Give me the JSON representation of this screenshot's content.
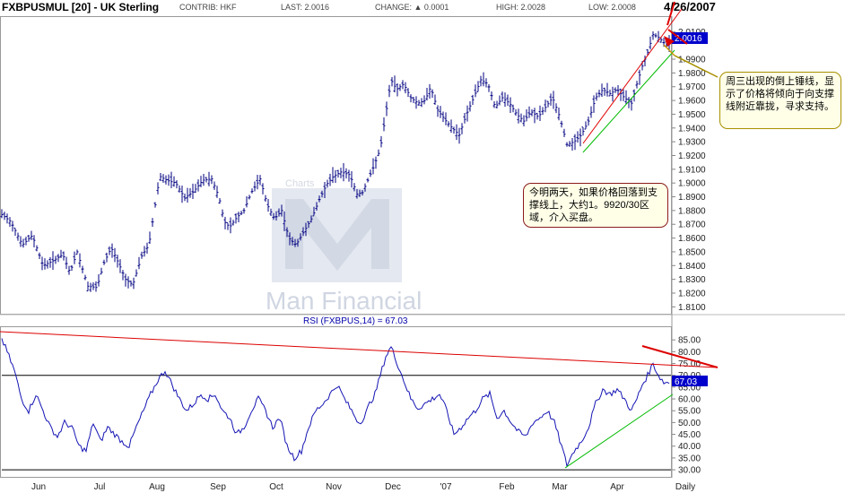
{
  "header": {
    "symbol": "FXBPUSMUL [20] - UK Sterling",
    "contrib": "CONTRIB: HKF",
    "last": "LAST: 2.0016",
    "change": "CHANGE: ▲ 0.0001",
    "high": "HIGH: 2.0028",
    "low": "LOW: 2.0008",
    "date": "4/26/2007"
  },
  "annotations": {
    "note_support": "今明两天，如果价格回落到支撑线上，大约1。9920/30区域，介入买盘。",
    "note_hammer": "周三出现的倒上锤线，显示了价格将倾向于向支撑线附近靠拢，寻求支持。"
  },
  "watermark": {
    "brand": "Man Financial",
    "faded_text": "Charts"
  },
  "colors": {
    "price": "#000080",
    "rsi": "#1414b4",
    "trend_red": "#e00000",
    "trend_green": "#00bb00",
    "label_box": "#0000cc"
  },
  "chart_data": [
    {
      "type": "line",
      "subtype": "ohlc-bar",
      "title": "FXBPUSMUL [20] - UK Sterling",
      "x_labels": [
        "Jun",
        "Jul",
        "Aug",
        "Sep",
        "Oct",
        "Nov",
        "Dec",
        "'07",
        "Feb",
        "Mar",
        "Apr",
        "Daily"
      ],
      "ylim": [
        1.805,
        2.02
      ],
      "yticks": [
        "2.0100",
        "1.9900",
        "1.9800",
        "1.9700",
        "1.9600",
        "1.9500",
        "1.9400",
        "1.9300",
        "1.9200",
        "1.9100",
        "1.9000",
        "1.8900",
        "1.8800",
        "1.8700",
        "1.8600",
        "1.8500",
        "1.8400",
        "1.8300",
        "1.8200",
        "1.8100"
      ],
      "last_label": "2.0016",
      "anchors": [
        [
          0,
          1.878
        ],
        [
          12,
          1.872
        ],
        [
          25,
          1.855
        ],
        [
          36,
          1.862
        ],
        [
          48,
          1.84
        ],
        [
          58,
          1.843
        ],
        [
          70,
          1.848
        ],
        [
          78,
          1.835
        ],
        [
          86,
          1.85
        ],
        [
          98,
          1.825
        ],
        [
          108,
          1.824
        ],
        [
          116,
          1.842
        ],
        [
          124,
          1.853
        ],
        [
          132,
          1.842
        ],
        [
          140,
          1.83
        ],
        [
          148,
          1.826
        ],
        [
          158,
          1.847
        ],
        [
          166,
          1.855
        ],
        [
          172,
          1.88
        ],
        [
          178,
          1.905
        ],
        [
          186,
          1.902
        ],
        [
          196,
          1.9
        ],
        [
          206,
          1.889
        ],
        [
          216,
          1.894
        ],
        [
          226,
          1.902
        ],
        [
          236,
          1.903
        ],
        [
          244,
          1.89
        ],
        [
          250,
          1.872
        ],
        [
          256,
          1.868
        ],
        [
          264,
          1.875
        ],
        [
          272,
          1.88
        ],
        [
          280,
          1.893
        ],
        [
          290,
          1.903
        ],
        [
          298,
          1.884
        ],
        [
          306,
          1.874
        ],
        [
          314,
          1.88
        ],
        [
          322,
          1.86
        ],
        [
          330,
          1.855
        ],
        [
          340,
          1.866
        ],
        [
          348,
          1.875
        ],
        [
          356,
          1.888
        ],
        [
          364,
          1.899
        ],
        [
          372,
          1.905
        ],
        [
          380,
          1.908
        ],
        [
          390,
          1.906
        ],
        [
          398,
          1.892
        ],
        [
          404,
          1.893
        ],
        [
          410,
          1.902
        ],
        [
          416,
          1.911
        ],
        [
          424,
          1.925
        ],
        [
          430,
          1.95
        ],
        [
          436,
          1.975
        ],
        [
          442,
          1.968
        ],
        [
          450,
          1.972
        ],
        [
          458,
          1.962
        ],
        [
          466,
          1.958
        ],
        [
          474,
          1.96
        ],
        [
          480,
          1.97
        ],
        [
          488,
          1.953
        ],
        [
          496,
          1.946
        ],
        [
          504,
          1.94
        ],
        [
          512,
          1.935
        ],
        [
          520,
          1.95
        ],
        [
          528,
          1.962
        ],
        [
          536,
          1.975
        ],
        [
          544,
          1.972
        ],
        [
          552,
          1.955
        ],
        [
          560,
          1.962
        ],
        [
          568,
          1.958
        ],
        [
          576,
          1.95
        ],
        [
          584,
          1.945
        ],
        [
          592,
          1.952
        ],
        [
          600,
          1.948
        ],
        [
          608,
          1.955
        ],
        [
          616,
          1.962
        ],
        [
          624,
          1.948
        ],
        [
          632,
          1.928
        ],
        [
          640,
          1.93
        ],
        [
          648,
          1.935
        ],
        [
          656,
          1.945
        ],
        [
          664,
          1.962
        ],
        [
          672,
          1.968
        ],
        [
          680,
          1.965
        ],
        [
          688,
          1.968
        ],
        [
          696,
          1.962
        ],
        [
          704,
          1.958
        ],
        [
          710,
          1.972
        ],
        [
          716,
          1.985
        ],
        [
          722,
          1.995
        ],
        [
          728,
          2.008
        ],
        [
          734,
          2.006
        ],
        [
          740,
          2.002
        ],
        [
          748,
          2.0016
        ]
      ]
    },
    {
      "type": "line",
      "title": "RSI (FXBPUS,14) = 67.03",
      "ylim": [
        27,
        90
      ],
      "yticks": [
        "85.00",
        "80.00",
        "75.00",
        "70.00",
        "65.00",
        "60.00",
        "55.00",
        "50.00",
        "45.00",
        "40.00",
        "35.00",
        "30.00"
      ],
      "last_label": "67.03",
      "reference_lines": [
        70,
        30
      ],
      "anchors": [
        [
          0,
          87
        ],
        [
          8,
          80
        ],
        [
          16,
          72
        ],
        [
          24,
          60
        ],
        [
          32,
          55
        ],
        [
          40,
          62
        ],
        [
          48,
          55
        ],
        [
          56,
          48
        ],
        [
          64,
          44
        ],
        [
          72,
          50
        ],
        [
          80,
          48
        ],
        [
          88,
          40
        ],
        [
          96,
          38
        ],
        [
          104,
          50
        ],
        [
          112,
          42
        ],
        [
          120,
          48
        ],
        [
          128,
          45
        ],
        [
          136,
          42
        ],
        [
          144,
          40
        ],
        [
          152,
          48
        ],
        [
          160,
          55
        ],
        [
          168,
          62
        ],
        [
          176,
          68
        ],
        [
          184,
          72
        ],
        [
          192,
          66
        ],
        [
          200,
          60
        ],
        [
          208,
          55
        ],
        [
          216,
          58
        ],
        [
          224,
          62
        ],
        [
          232,
          60
        ],
        [
          240,
          62
        ],
        [
          248,
          55
        ],
        [
          256,
          52
        ],
        [
          264,
          45
        ],
        [
          272,
          48
        ],
        [
          280,
          55
        ],
        [
          288,
          60
        ],
        [
          296,
          55
        ],
        [
          304,
          48
        ],
        [
          312,
          52
        ],
        [
          320,
          40
        ],
        [
          328,
          35
        ],
        [
          336,
          38
        ],
        [
          344,
          48
        ],
        [
          352,
          55
        ],
        [
          360,
          58
        ],
        [
          368,
          62
        ],
        [
          376,
          66
        ],
        [
          384,
          60
        ],
        [
          392,
          55
        ],
        [
          400,
          50
        ],
        [
          406,
          52
        ],
        [
          412,
          58
        ],
        [
          418,
          62
        ],
        [
          424,
          70
        ],
        [
          430,
          78
        ],
        [
          436,
          82
        ],
        [
          442,
          76
        ],
        [
          450,
          68
        ],
        [
          458,
          60
        ],
        [
          466,
          56
        ],
        [
          474,
          58
        ],
        [
          482,
          60
        ],
        [
          490,
          62
        ],
        [
          498,
          55
        ],
        [
          506,
          45
        ],
        [
          514,
          48
        ],
        [
          522,
          52
        ],
        [
          530,
          55
        ],
        [
          538,
          60
        ],
        [
          546,
          62
        ],
        [
          554,
          52
        ],
        [
          562,
          55
        ],
        [
          570,
          50
        ],
        [
          578,
          46
        ],
        [
          586,
          44
        ],
        [
          594,
          50
        ],
        [
          602,
          52
        ],
        [
          610,
          55
        ],
        [
          618,
          50
        ],
        [
          626,
          40
        ],
        [
          632,
          32
        ],
        [
          640,
          38
        ],
        [
          648,
          42
        ],
        [
          656,
          48
        ],
        [
          664,
          58
        ],
        [
          672,
          64
        ],
        [
          680,
          62
        ],
        [
          688,
          64
        ],
        [
          696,
          60
        ],
        [
          704,
          55
        ],
        [
          710,
          60
        ],
        [
          716,
          66
        ],
        [
          722,
          70
        ],
        [
          728,
          75
        ],
        [
          734,
          70
        ],
        [
          740,
          67
        ],
        [
          748,
          67.03
        ]
      ]
    }
  ]
}
